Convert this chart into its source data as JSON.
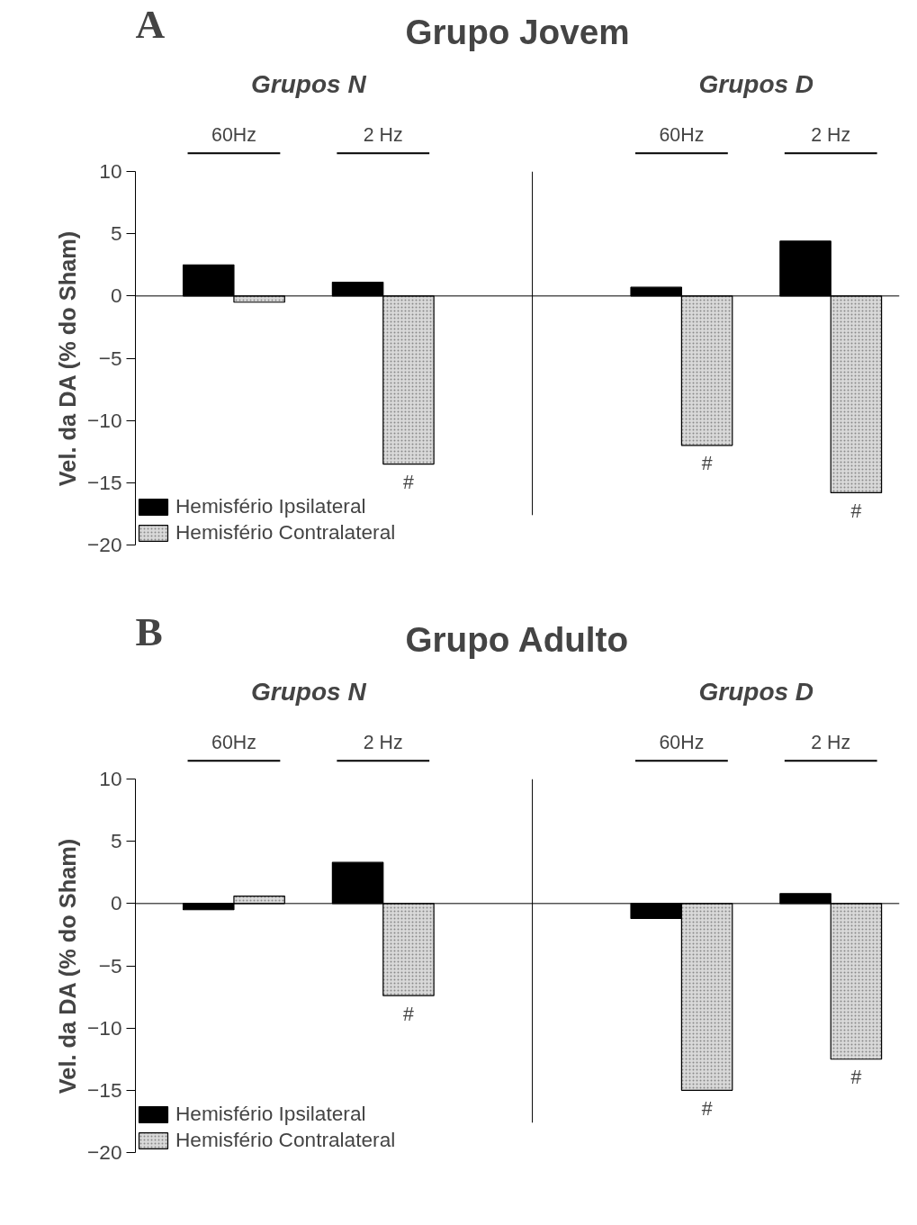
{
  "chart_data": [
    {
      "type": "bar",
      "title": "Grupo Jovem",
      "ylabel": "Vel. da DA (% do Sham)",
      "categories": [
        "60Hz",
        "2 Hz",
        "60Hz",
        "2 Hz"
      ],
      "series": [
        {
          "name": "Hemisfério Ipsilateral",
          "color": "#000000",
          "values": [
            2.5,
            1.1,
            0.7,
            4.4
          ]
        },
        {
          "name": "Hemisfério Contralateral",
          "color": "#d9d9d9",
          "values": [
            -0.5,
            -13.5,
            -12.0,
            -15.8
          ]
        }
      ],
      "annotations": [
        "A",
        "Grupos N",
        "Grupos D",
        "#",
        "#",
        "#"
      ],
      "ylim": [
        -20,
        10
      ],
      "yticks": [
        -20,
        -15,
        -10,
        -5,
        0,
        5,
        10
      ],
      "ref_lines": [
        {
          "axis": "y",
          "value": 0
        }
      ],
      "grid": false,
      "legend": "bottom left"
    },
    {
      "type": "bar",
      "title": "Grupo Adulto",
      "ylabel": "Vel. da DA (% do Sham)",
      "categories": [
        "60Hz",
        "2 Hz",
        "60Hz",
        "2 Hz"
      ],
      "series": [
        {
          "name": "Hemisfério Ipsilateral",
          "color": "#000000",
          "values": [
            -0.5,
            3.3,
            -1.2,
            0.8
          ]
        },
        {
          "name": "Hemisfério Contralateral",
          "color": "#d9d9d9",
          "values": [
            0.6,
            -7.4,
            -15.0,
            -12.5
          ]
        }
      ],
      "annotations": [
        "B",
        "Grupos N",
        "Grupos D",
        "#",
        "#",
        "#"
      ],
      "ylim": [
        -20,
        10
      ],
      "yticks": [
        -20,
        -15,
        -10,
        -5,
        0,
        5,
        10
      ],
      "ref_lines": [
        {
          "axis": "y",
          "value": 0
        }
      ],
      "grid": false,
      "legend": "bottom left"
    }
  ]
}
